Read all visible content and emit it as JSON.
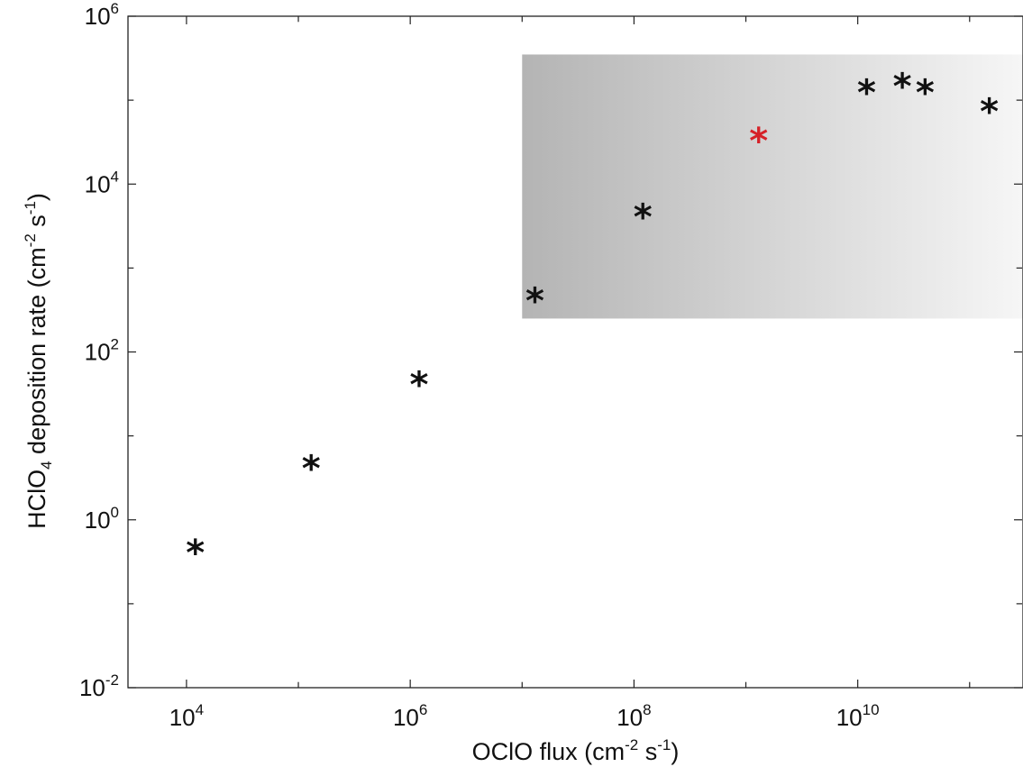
{
  "chart_data": {
    "type": "scatter",
    "title": "",
    "x_scale": "log",
    "y_scale": "log",
    "xlim": [
      3000,
      300000000000
    ],
    "ylim": [
      0.01,
      1000000
    ],
    "xlabel": {
      "text": "OClO flux (cm",
      "sup1": "-2",
      "mid": " s",
      "sup2": "-1",
      "end": ")"
    },
    "ylabel": {
      "text": "HClO",
      "sub": "4",
      "mid": " deposition rate (cm",
      "sup1": "-2",
      "mid2": " s",
      "sup2": "-1",
      "end": ")"
    },
    "x_ticks": [
      {
        "value": 10000,
        "base": "10",
        "exp": "4"
      },
      {
        "value": 1000000,
        "base": "10",
        "exp": "6"
      },
      {
        "value": 100000000,
        "base": "10",
        "exp": "8"
      },
      {
        "value": 10000000000,
        "base": "10",
        "exp": "10"
      }
    ],
    "y_ticks": [
      {
        "value": 0.01,
        "base": "10",
        "exp": "-2"
      },
      {
        "value": 1,
        "base": "10",
        "exp": "0"
      },
      {
        "value": 100,
        "base": "10",
        "exp": "2"
      },
      {
        "value": 10000,
        "base": "10",
        "exp": "4"
      },
      {
        "value": 1000000,
        "base": "10",
        "exp": "6"
      }
    ],
    "grid": false,
    "shaded_region": {
      "x": [
        10000000,
        300000000000
      ],
      "y": [
        250,
        350000
      ],
      "gradient": [
        "#b4b4b4",
        "#f6f6f6"
      ]
    },
    "series": [
      {
        "marker": "*",
        "color": "#111111",
        "points": [
          {
            "x": 12000,
            "y": 0.5
          },
          {
            "x": 130000,
            "y": 5
          },
          {
            "x": 1200000,
            "y": 50
          },
          {
            "x": 13000000,
            "y": 500
          },
          {
            "x": 120000000,
            "y": 5000
          },
          {
            "x": 12000000000,
            "y": 150000
          },
          {
            "x": 25000000000,
            "y": 180000
          },
          {
            "x": 40000000000,
            "y": 150000
          },
          {
            "x": 150000000000,
            "y": 90000
          }
        ]
      },
      {
        "marker": "*",
        "color": "#d62128",
        "points": [
          {
            "x": 1300000000,
            "y": 40000
          }
        ]
      }
    ]
  }
}
